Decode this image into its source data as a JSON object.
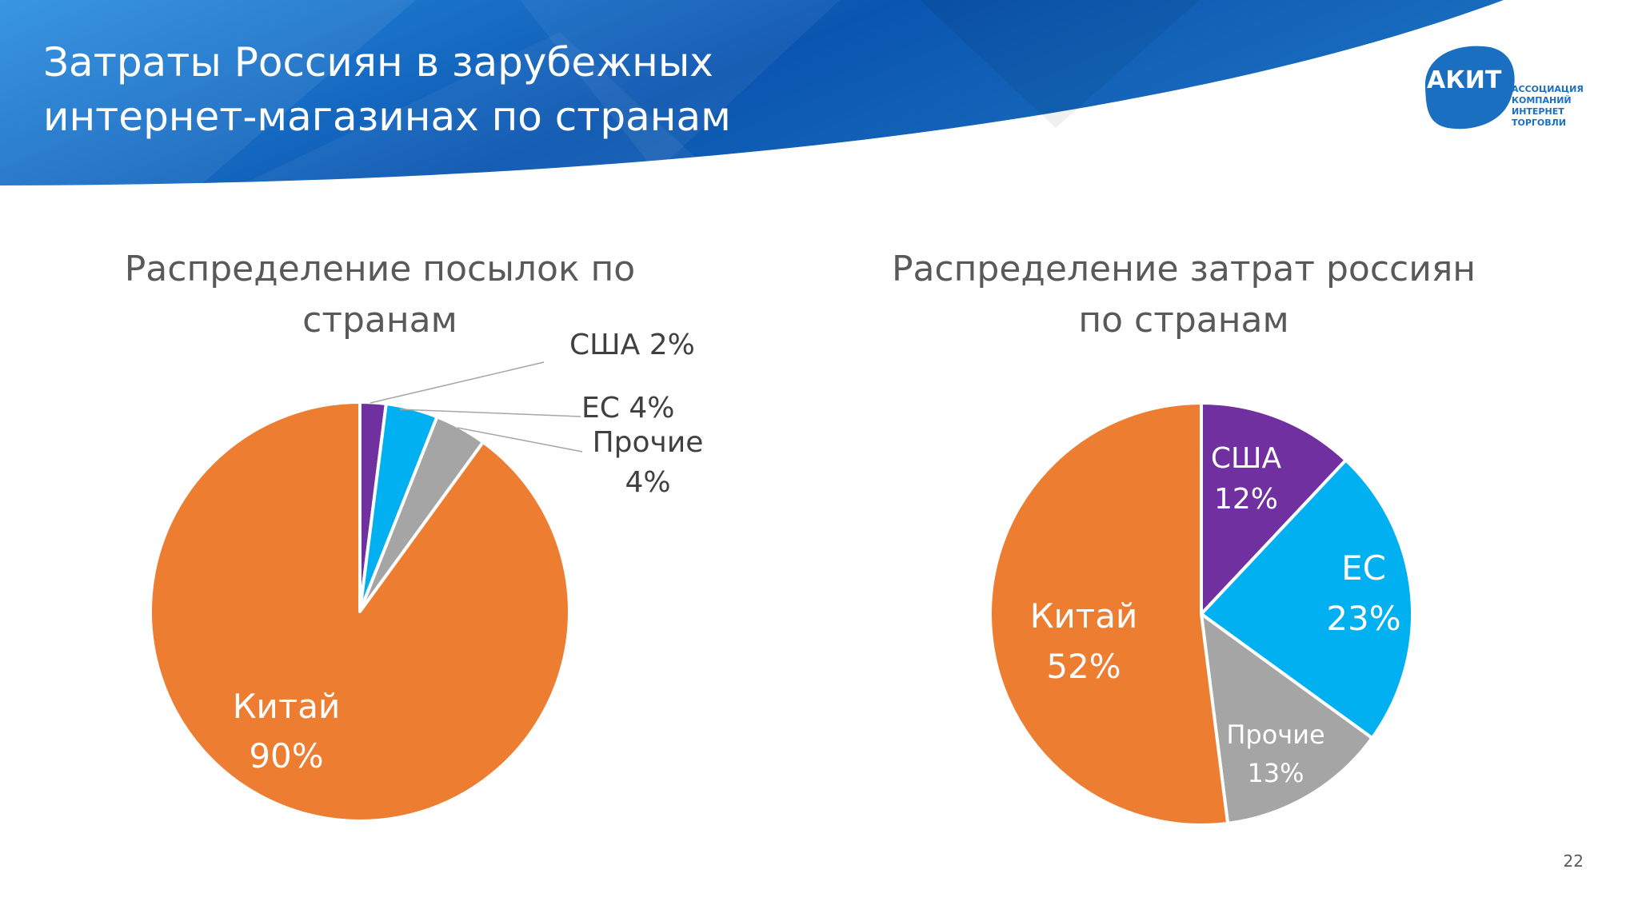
{
  "slide": {
    "title_line1": "Затраты Россиян в зарубежных",
    "title_line2": "интернет-магазинах по странам",
    "page_number": "22"
  },
  "logo": {
    "mark": "АКИТ",
    "line1": "АССОЦИАЦИЯ",
    "line2": "КОМПАНИЙ",
    "line3": "ИНТЕРНЕТ",
    "line4": "ТОРГОВЛИ"
  },
  "colors": {
    "banner_dark": "#0a55b0",
    "banner_light": "#2a8ee0",
    "usa": "#7030a0",
    "eu": "#00b0f0",
    "other": "#a5a5a5",
    "china": "#ed7d31"
  },
  "chart_data": [
    {
      "type": "pie",
      "title_line1": "Распределение посылок по",
      "title_line2": "странам",
      "slices": [
        {
          "name": "США",
          "value": 2,
          "label": "США 2%",
          "color": "#7030a0"
        },
        {
          "name": "ЕС",
          "value": 4,
          "label": "ЕС 4%",
          "color": "#00b0f0"
        },
        {
          "name": "Прочие",
          "value": 4,
          "label_line1": "Прочие",
          "label_line2": "4%",
          "color": "#a5a5a5"
        },
        {
          "name": "Китай",
          "value": 90,
          "label_line1": "Китай",
          "label_line2": "90%",
          "color": "#ed7d31"
        }
      ]
    },
    {
      "type": "pie",
      "title_line1": "Распределение  затрат россиян",
      "title_line2": "по странам",
      "slices": [
        {
          "name": "США",
          "value": 12,
          "label_line1": "США",
          "label_line2": "12%",
          "color": "#7030a0"
        },
        {
          "name": "ЕС",
          "value": 23,
          "label_line1": "ЕС",
          "label_line2": "23%",
          "color": "#00b0f0"
        },
        {
          "name": "Прочие",
          "value": 13,
          "label_line1": "Прочие",
          "label_line2": "13%",
          "color": "#a5a5a5"
        },
        {
          "name": "Китай",
          "value": 52,
          "label_line1": "Китай",
          "label_line2": "52%",
          "color": "#ed7d31"
        }
      ]
    }
  ]
}
